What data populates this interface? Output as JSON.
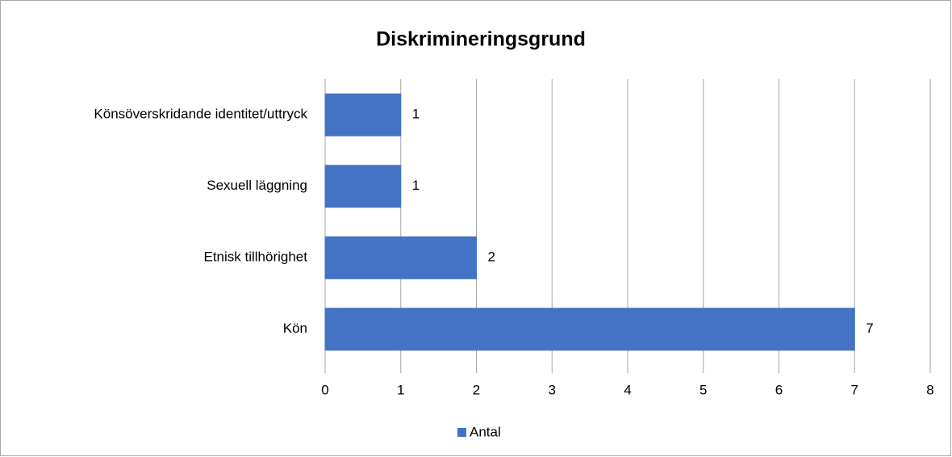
{
  "chart_data": {
    "type": "bar",
    "orientation": "horizontal",
    "title": "Diskrimineringsgrund",
    "categories": [
      "Könsöverskridande identitet/uttryck",
      "Sexuell läggning",
      "Etnisk tillhörighet",
      "Kön"
    ],
    "series": [
      {
        "name": "Antal",
        "color": "#4472c4",
        "values": [
          1,
          1,
          2,
          7
        ]
      }
    ],
    "xlim": [
      0,
      8
    ],
    "xticks": [
      0,
      1,
      2,
      3,
      4,
      5,
      6,
      7,
      8
    ],
    "grid": true,
    "legend": "bottom"
  }
}
